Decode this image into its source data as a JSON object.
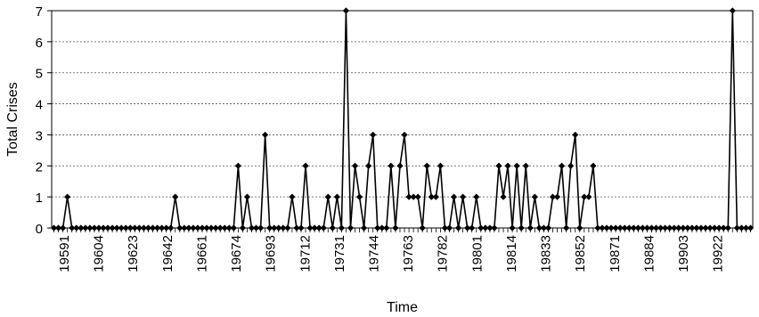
{
  "chart_data": {
    "type": "line",
    "title": "",
    "xlabel": "Time",
    "ylabel": "Total Crises",
    "ylim": [
      0,
      7
    ],
    "yticks": [
      "0",
      "1",
      "2",
      "3",
      "4",
      "5",
      "6",
      "7"
    ],
    "xtick_labels": [
      "19591",
      "19604",
      "19623",
      "19642",
      "19661",
      "19674",
      "19693",
      "19712",
      "19731",
      "19744",
      "19763",
      "19782",
      "19801",
      "19814",
      "19833",
      "19852",
      "19871",
      "19884",
      "19903",
      "19922"
    ],
    "grid": "horizontal-dashed",
    "legend": "none",
    "line_color": "#000000",
    "marker": "diamond",
    "values": [
      0,
      0,
      0,
      1,
      0,
      0,
      0,
      0,
      0,
      0,
      0,
      0,
      0,
      0,
      0,
      0,
      0,
      0,
      0,
      0,
      0,
      0,
      0,
      0,
      0,
      0,
      0,
      1,
      0,
      0,
      0,
      0,
      0,
      0,
      0,
      0,
      0,
      0,
      0,
      0,
      0,
      2,
      0,
      1,
      0,
      0,
      0,
      3,
      0,
      0,
      0,
      0,
      0,
      1,
      0,
      0,
      2,
      0,
      0,
      0,
      0,
      1,
      0,
      1,
      0,
      7,
      0,
      2,
      1,
      0,
      2,
      3,
      0,
      0,
      0,
      2,
      0,
      2,
      3,
      1,
      1,
      1,
      0,
      2,
      1,
      1,
      2,
      0,
      0,
      1,
      0,
      1,
      0,
      0,
      1,
      0,
      0,
      0,
      0,
      2,
      1,
      2,
      0,
      2,
      0,
      2,
      0,
      1,
      0,
      0,
      0,
      1,
      1,
      2,
      0,
      2,
      3,
      0,
      1,
      1,
      2,
      0,
      0,
      0,
      0,
      0,
      0,
      0,
      0,
      0,
      0,
      0,
      0,
      0,
      0,
      0,
      0,
      0,
      0,
      0,
      0,
      0,
      0,
      0,
      0,
      0,
      0,
      0,
      0,
      0,
      0,
      7,
      0,
      0,
      0,
      0
    ]
  }
}
